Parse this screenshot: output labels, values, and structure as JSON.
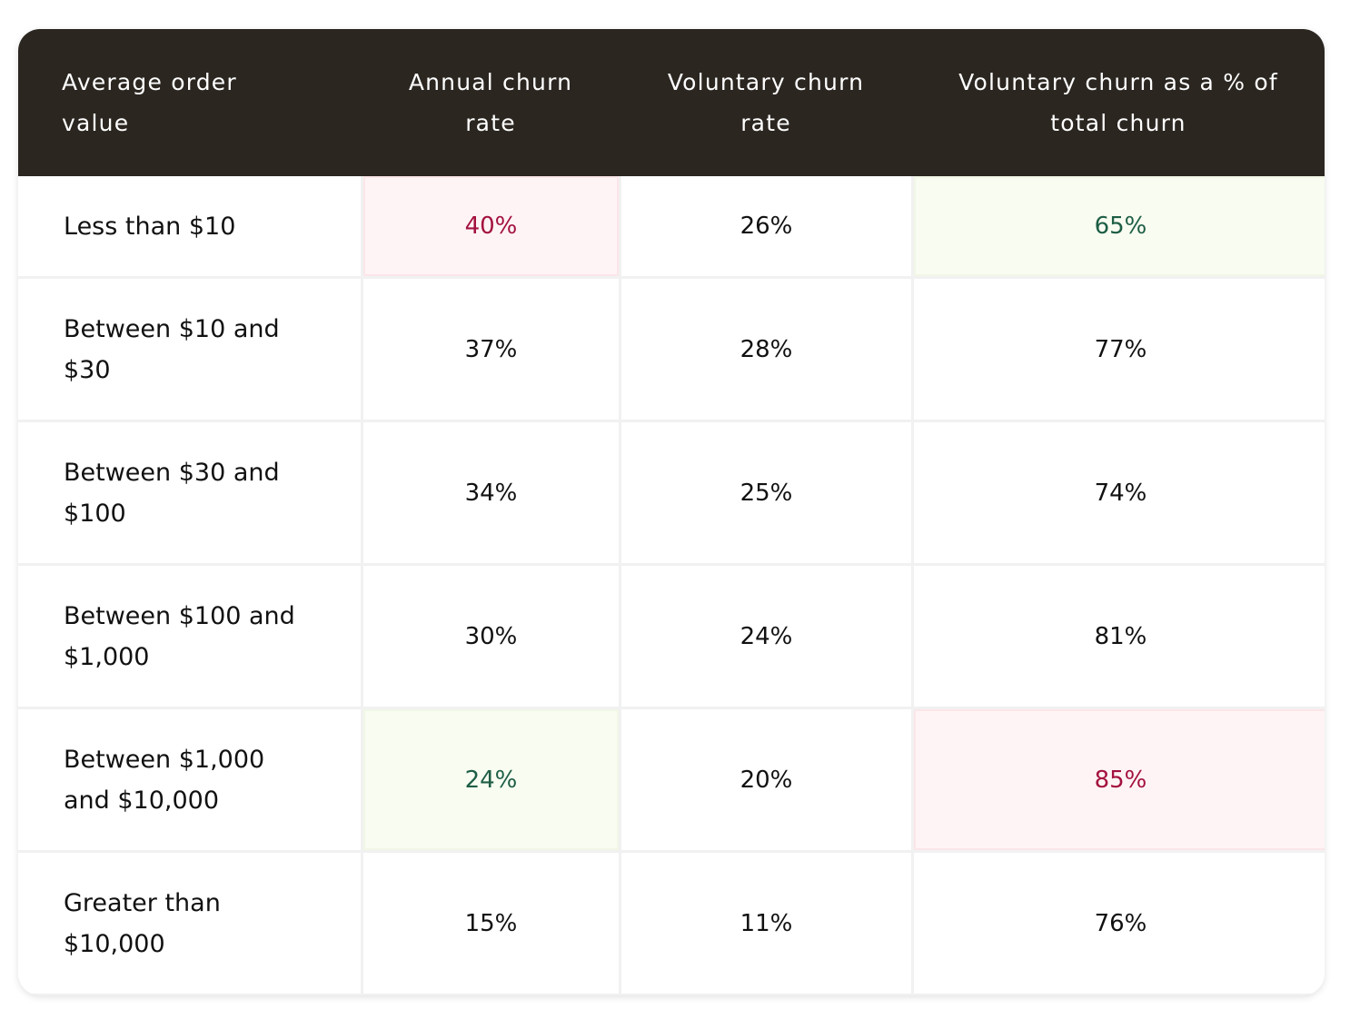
{
  "table": {
    "header": [
      "Average order value",
      "Annual churn rate",
      "Voluntary churn rate",
      "Voluntary churn as a % of total churn"
    ],
    "rows": [
      [
        "Less than $10",
        "40%",
        "26%",
        "65%"
      ],
      [
        "Between $10 and $30",
        "37%",
        "28%",
        "77%"
      ],
      [
        "Between $30 and $100",
        "34%",
        "25%",
        "74%"
      ],
      [
        "Between $100 and $1,000",
        "30%",
        "24%",
        "81%"
      ],
      [
        "Between $1,000 and $10,000",
        "24%",
        "20%",
        "85%"
      ],
      [
        "Greater than $10,000",
        "15%",
        "11%",
        "76%"
      ]
    ]
  }
}
